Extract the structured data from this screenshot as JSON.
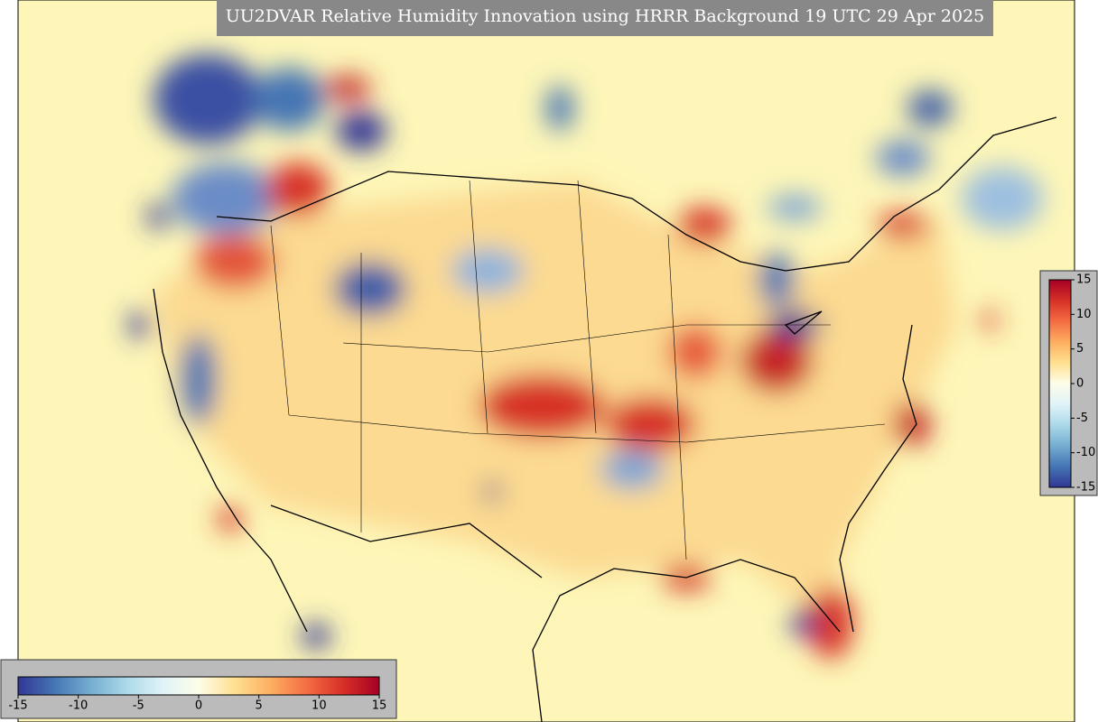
{
  "title": "UU2DVAR Relative Humidity Innovation using HRRR Background 19 UTC 29 Apr 2025",
  "colormap": [
    "#313695",
    "#4575b4",
    "#74add1",
    "#abd9e9",
    "#e0f3f8",
    "#fdfde8",
    "#fee090",
    "#fdae61",
    "#f46d43",
    "#d73027",
    "#a50026"
  ],
  "colorbars": [
    {
      "orientation": "horizontal",
      "lim": [
        -15,
        15
      ],
      "ticks": [
        -15,
        -10,
        -5,
        0,
        5,
        10,
        15
      ]
    },
    {
      "orientation": "vertical",
      "lim": [
        -15,
        15
      ],
      "ticks": [
        -15,
        -10,
        -5,
        0,
        5,
        10,
        15
      ]
    }
  ]
}
